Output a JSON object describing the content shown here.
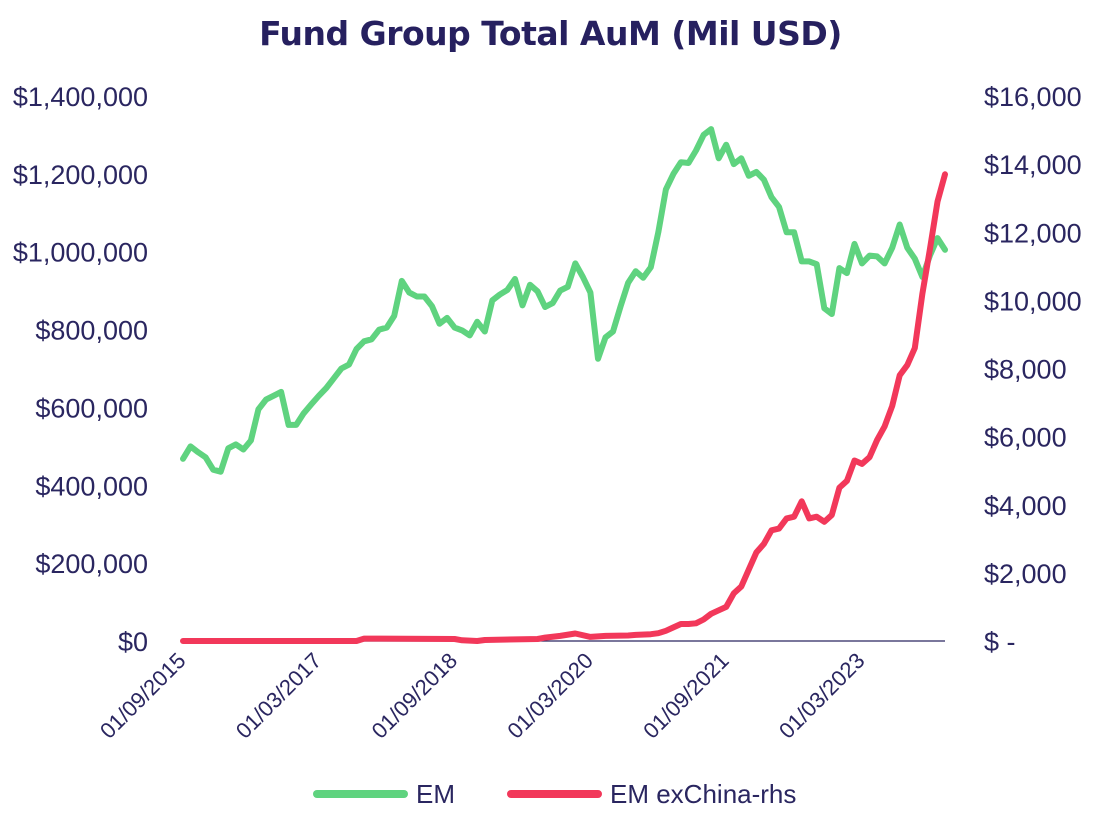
{
  "chart_data": {
    "type": "line",
    "title": "Fund Group Total AuM (Mil USD)",
    "xlabel": "",
    "ylabel": "",
    "x_tick_labels": [
      "01/09/2015",
      "01/03/2017",
      "01/09/2018",
      "01/03/2020",
      "01/09/2021",
      "01/03/2023"
    ],
    "left_axis": {
      "ylim": [
        0,
        1400000
      ],
      "tick_labels": [
        "$0",
        "$200,000",
        "$400,000",
        "$600,000",
        "$800,000",
        "$1,000,000",
        "$1,200,000",
        "$1,400,000"
      ]
    },
    "right_axis": {
      "ylim": [
        0,
        16000
      ],
      "tick_labels": [
        "$ -",
        "$2,000",
        "$4,000",
        "$6,000",
        "$8,000",
        "$10,000",
        "$12,000",
        "$14,000",
        "$16,000"
      ]
    },
    "grid": false,
    "legend_position": "bottom",
    "series": [
      {
        "name": "EM",
        "axis": "left",
        "color": "#5fd37f",
        "points": [
          [
            "2015-09",
            468000
          ],
          [
            "2015-10",
            500000
          ],
          [
            "2015-11",
            485000
          ],
          [
            "2015-12",
            472000
          ],
          [
            "2016-01",
            440000
          ],
          [
            "2016-02",
            435000
          ],
          [
            "2016-03",
            495000
          ],
          [
            "2016-04",
            505000
          ],
          [
            "2016-05",
            492000
          ],
          [
            "2016-06",
            515000
          ],
          [
            "2016-07",
            595000
          ],
          [
            "2016-08",
            620000
          ],
          [
            "2016-09",
            630000
          ],
          [
            "2016-10",
            640000
          ],
          [
            "2016-11",
            555000
          ],
          [
            "2016-12",
            555000
          ],
          [
            "2017-01",
            585000
          ],
          [
            "2017-02",
            608000
          ],
          [
            "2017-03",
            630000
          ],
          [
            "2017-04",
            650000
          ],
          [
            "2017-05",
            675000
          ],
          [
            "2017-06",
            700000
          ],
          [
            "2017-07",
            710000
          ],
          [
            "2017-08",
            750000
          ],
          [
            "2017-09",
            770000
          ],
          [
            "2017-10",
            775000
          ],
          [
            "2017-11",
            800000
          ],
          [
            "2017-12",
            805000
          ],
          [
            "2018-01",
            835000
          ],
          [
            "2018-02",
            925000
          ],
          [
            "2018-03",
            895000
          ],
          [
            "2018-04",
            885000
          ],
          [
            "2018-05",
            885000
          ],
          [
            "2018-06",
            860000
          ],
          [
            "2018-07",
            815000
          ],
          [
            "2018-08",
            830000
          ],
          [
            "2018-09",
            805000
          ],
          [
            "2018-10",
            798000
          ],
          [
            "2018-11",
            785000
          ],
          [
            "2018-12",
            820000
          ],
          [
            "2019-01",
            795000
          ],
          [
            "2019-02",
            875000
          ],
          [
            "2019-03",
            890000
          ],
          [
            "2019-04",
            902000
          ],
          [
            "2019-05",
            930000
          ],
          [
            "2019-06",
            862000
          ],
          [
            "2019-07",
            915000
          ],
          [
            "2019-08",
            898000
          ],
          [
            "2019-09",
            858000
          ],
          [
            "2019-10",
            868000
          ],
          [
            "2019-11",
            900000
          ],
          [
            "2019-12",
            910000
          ],
          [
            "2020-01",
            970000
          ],
          [
            "2020-02",
            935000
          ],
          [
            "2020-03",
            895000
          ],
          [
            "2020-04",
            725000
          ],
          [
            "2020-05",
            780000
          ],
          [
            "2020-06",
            795000
          ],
          [
            "2020-07",
            860000
          ],
          [
            "2020-08",
            920000
          ],
          [
            "2020-09",
            950000
          ],
          [
            "2020-10",
            933000
          ],
          [
            "2020-11",
            960000
          ],
          [
            "2020-12",
            1050000
          ],
          [
            "2021-01",
            1160000
          ],
          [
            "2021-02",
            1200000
          ],
          [
            "2021-03",
            1230000
          ],
          [
            "2021-04",
            1228000
          ],
          [
            "2021-05",
            1260000
          ],
          [
            "2021-06",
            1300000
          ],
          [
            "2021-07",
            1315000
          ],
          [
            "2021-08",
            1240000
          ],
          [
            "2021-09",
            1275000
          ],
          [
            "2021-10",
            1225000
          ],
          [
            "2021-11",
            1240000
          ],
          [
            "2021-12",
            1195000
          ],
          [
            "2022-01",
            1205000
          ],
          [
            "2022-02",
            1185000
          ],
          [
            "2022-03",
            1140000
          ],
          [
            "2022-04",
            1115000
          ],
          [
            "2022-05",
            1050000
          ],
          [
            "2022-06",
            1050000
          ],
          [
            "2022-07",
            975000
          ],
          [
            "2022-08",
            975000
          ],
          [
            "2022-09",
            968000
          ],
          [
            "2022-10",
            855000
          ],
          [
            "2022-11",
            840000
          ],
          [
            "2022-12",
            958000
          ],
          [
            "2023-01",
            945000
          ],
          [
            "2023-02",
            1020000
          ],
          [
            "2023-03",
            970000
          ],
          [
            "2023-04",
            990000
          ],
          [
            "2023-05",
            988000
          ],
          [
            "2023-06",
            970000
          ],
          [
            "2023-07",
            1010000
          ],
          [
            "2023-08",
            1070000
          ],
          [
            "2023-09",
            1010000
          ],
          [
            "2023-10",
            982000
          ],
          [
            "2023-11",
            935000
          ],
          [
            "2023-12",
            990000
          ],
          [
            "2024-01",
            1035000
          ],
          [
            "2024-02",
            1005000
          ]
        ]
      },
      {
        "name": "EM exChina-rhs",
        "axis": "right",
        "color": "#f2385a",
        "points": [
          [
            "2015-09",
            0
          ],
          [
            "2016-09",
            0
          ],
          [
            "2017-08",
            0
          ],
          [
            "2017-09",
            70
          ],
          [
            "2018-09",
            60
          ],
          [
            "2018-10",
            20
          ],
          [
            "2018-12",
            0
          ],
          [
            "2019-01",
            30
          ],
          [
            "2019-08",
            60
          ],
          [
            "2019-09",
            100
          ],
          [
            "2019-11",
            150
          ],
          [
            "2020-01",
            220
          ],
          [
            "2020-03",
            120
          ],
          [
            "2020-05",
            150
          ],
          [
            "2020-08",
            160
          ],
          [
            "2020-09",
            180
          ],
          [
            "2020-11",
            200
          ],
          [
            "2020-12",
            230
          ],
          [
            "2021-01",
            300
          ],
          [
            "2021-02",
            400
          ],
          [
            "2021-03",
            500
          ],
          [
            "2021-04",
            500
          ],
          [
            "2021-05",
            520
          ],
          [
            "2021-06",
            630
          ],
          [
            "2021-07",
            800
          ],
          [
            "2021-08",
            900
          ],
          [
            "2021-09",
            1000
          ],
          [
            "2021-10",
            1400
          ],
          [
            "2021-11",
            1600
          ],
          [
            "2021-12",
            2100
          ],
          [
            "2022-01",
            2600
          ],
          [
            "2022-02",
            2850
          ],
          [
            "2022-03",
            3250
          ],
          [
            "2022-04",
            3300
          ],
          [
            "2022-05",
            3600
          ],
          [
            "2022-06",
            3650
          ],
          [
            "2022-07",
            4100
          ],
          [
            "2022-08",
            3600
          ],
          [
            "2022-09",
            3650
          ],
          [
            "2022-10",
            3500
          ],
          [
            "2022-11",
            3700
          ],
          [
            "2022-12",
            4500
          ],
          [
            "2023-01",
            4700
          ],
          [
            "2023-02",
            5300
          ],
          [
            "2023-03",
            5200
          ],
          [
            "2023-04",
            5400
          ],
          [
            "2023-05",
            5900
          ],
          [
            "2023-06",
            6300
          ],
          [
            "2023-07",
            6900
          ],
          [
            "2023-08",
            7800
          ],
          [
            "2023-09",
            8100
          ],
          [
            "2023-10",
            8600
          ],
          [
            "2023-11",
            10200
          ],
          [
            "2023-12",
            11500
          ],
          [
            "2024-01",
            12900
          ],
          [
            "2024-02",
            13700
          ]
        ]
      }
    ]
  }
}
